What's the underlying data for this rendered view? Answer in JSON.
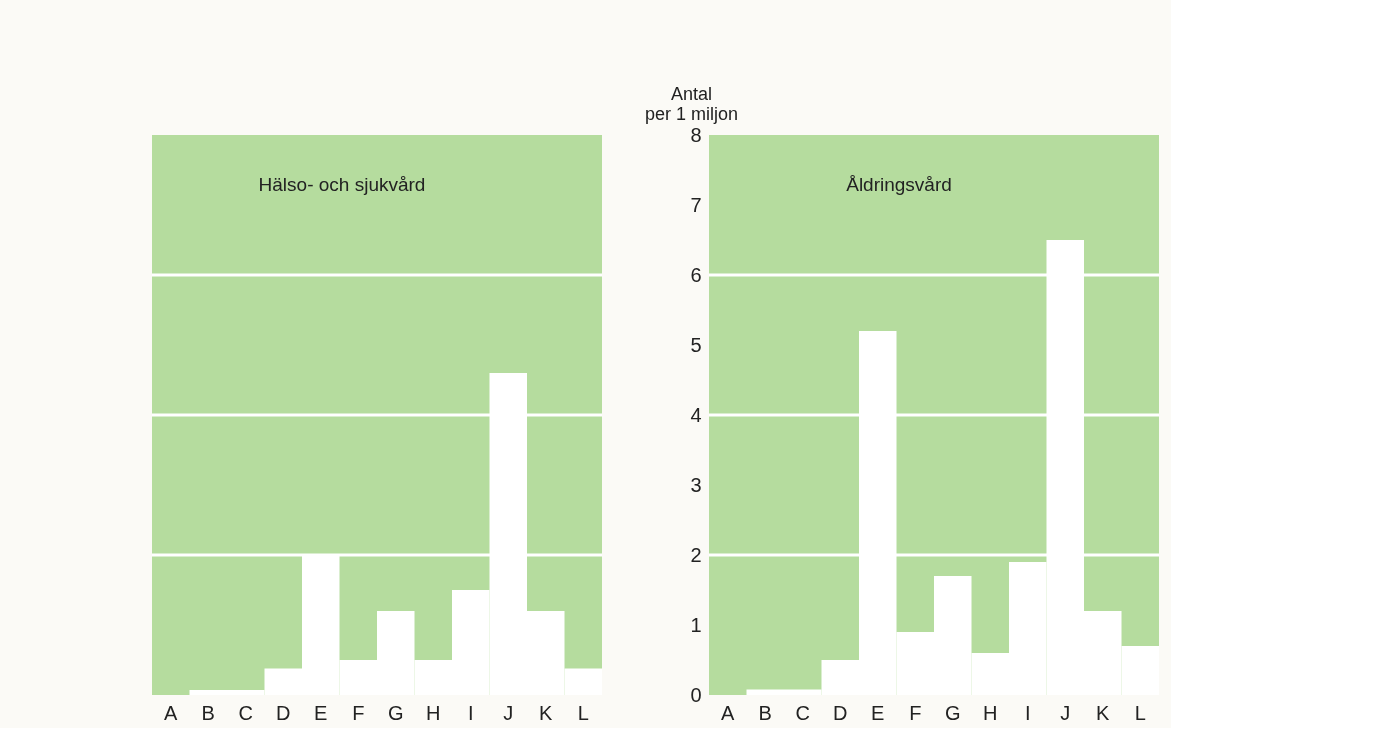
{
  "chart_data": [
    {
      "type": "bar",
      "title": "Hälso- och sjukvård",
      "categories": [
        "A",
        "B",
        "C",
        "D",
        "E",
        "F",
        "G",
        "H",
        "I",
        "J",
        "K",
        "L"
      ],
      "values": [
        0,
        0.07,
        0.07,
        0.38,
        2.0,
        0.5,
        1.2,
        0.5,
        1.5,
        4.6,
        1.2,
        0.38
      ],
      "color": "#ffffff",
      "ylim": [
        0,
        8
      ],
      "yticks": [
        0,
        1,
        2,
        3,
        4,
        5,
        6,
        7,
        8
      ],
      "tick_labels": "x",
      "ref_lines": [
        {
          "axis": "y",
          "value": 2,
          "color": "#ffffff"
        },
        {
          "axis": "y",
          "value": 4,
          "color": "#ffffff"
        },
        {
          "axis": "y",
          "value": 6,
          "color": "#ffffff"
        }
      ]
    },
    {
      "type": "bar",
      "title": "Åldringsvård",
      "ylabel": "Antal per 1 miljon",
      "categories": [
        "A",
        "B",
        "C",
        "D",
        "E",
        "F",
        "G",
        "H",
        "I",
        "J",
        "K",
        "L"
      ],
      "values": [
        0,
        0.08,
        0.08,
        0.5,
        5.2,
        0.9,
        1.7,
        0.6,
        1.9,
        6.5,
        1.2,
        0.7
      ],
      "color": "#ffffff",
      "ylim": [
        0,
        8
      ],
      "yticks": [
        0,
        1,
        2,
        3,
        4,
        5,
        6,
        7,
        8
      ],
      "ref_lines": [
        {
          "axis": "y",
          "value": 2,
          "color": "#ffffff"
        },
        {
          "axis": "y",
          "value": 4,
          "color": "#ffffff"
        },
        {
          "axis": "y",
          "value": 6,
          "color": "#ffffff"
        }
      ]
    }
  ]
}
